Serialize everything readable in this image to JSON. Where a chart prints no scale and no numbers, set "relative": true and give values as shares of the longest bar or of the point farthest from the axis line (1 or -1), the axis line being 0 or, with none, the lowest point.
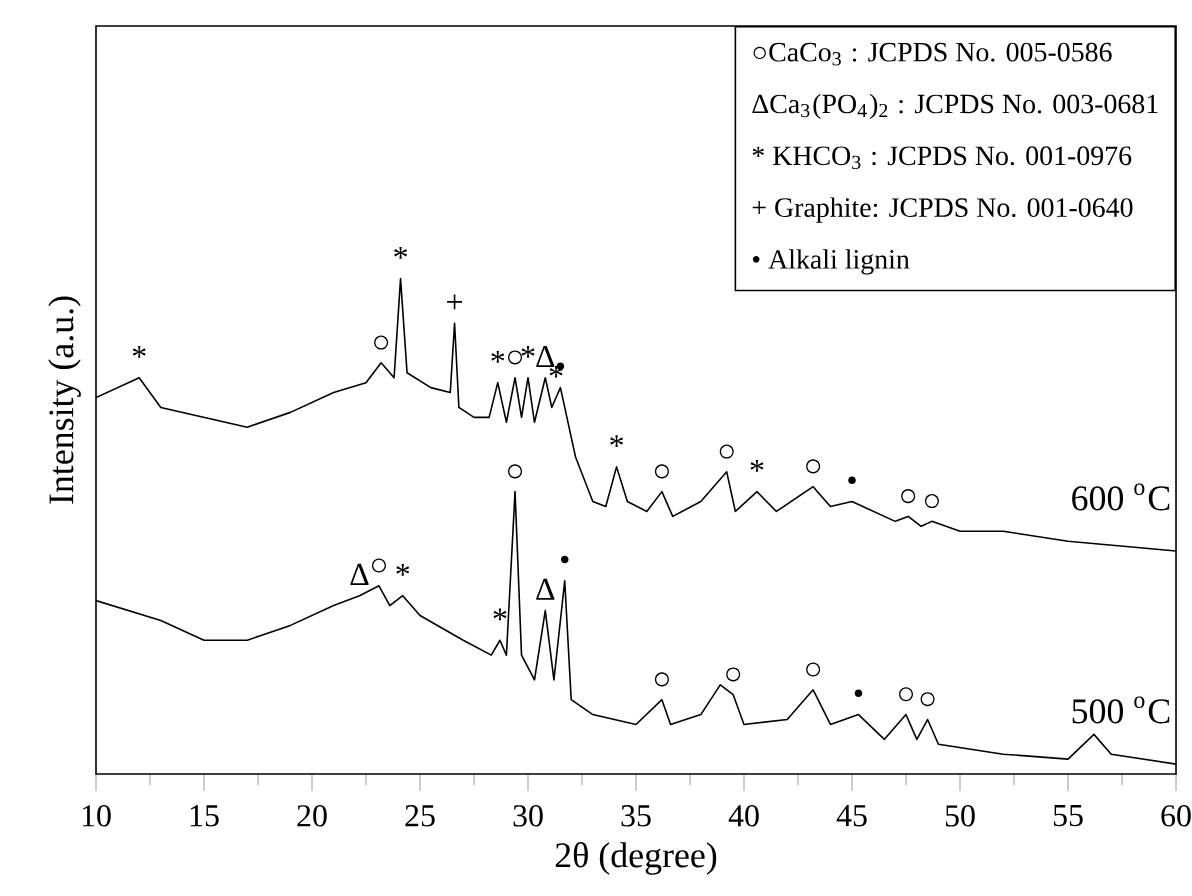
{
  "chart_data": {
    "type": "line",
    "relative": true,
    "xlabel": "2θ (degree)",
    "ylabel": "Intensity (a.u.)",
    "xlim": [
      10,
      60
    ],
    "xticks": [
      10,
      15,
      20,
      25,
      30,
      35,
      40,
      45,
      50,
      55,
      60
    ],
    "series": [
      {
        "name": "600 $^{o}$C",
        "color": "#000000",
        "x": [
          10,
          12,
          13,
          15,
          17,
          19,
          21,
          22.5,
          23.2,
          23.8,
          24.1,
          24.4,
          25.5,
          26.4,
          26.6,
          26.8,
          27.5,
          28.2,
          28.6,
          29.0,
          29.4,
          29.7,
          30.0,
          30.3,
          30.8,
          31.1,
          31.3,
          31.5,
          31.8,
          32.2,
          33,
          33.6,
          34.1,
          34.6,
          35.5,
          36.2,
          36.7,
          38,
          39.2,
          39.6,
          40.6,
          41.5,
          43.2,
          44,
          45,
          47,
          47.6,
          48.2,
          48.7,
          50,
          52,
          55,
          60
        ],
        "values": [
          0.76,
          0.8,
          0.74,
          0.72,
          0.7,
          0.73,
          0.77,
          0.79,
          0.83,
          0.8,
          1.0,
          0.81,
          0.78,
          0.77,
          0.91,
          0.74,
          0.72,
          0.72,
          0.79,
          0.71,
          0.8,
          0.72,
          0.8,
          0.71,
          0.8,
          0.74,
          0.76,
          0.78,
          0.72,
          0.64,
          0.55,
          0.54,
          0.62,
          0.55,
          0.53,
          0.57,
          0.52,
          0.55,
          0.61,
          0.53,
          0.57,
          0.53,
          0.58,
          0.54,
          0.55,
          0.51,
          0.52,
          0.5,
          0.51,
          0.49,
          0.49,
          0.47,
          0.45
        ]
      },
      {
        "name": "500 $^{o}$C",
        "color": "#000000",
        "x": [
          10,
          13,
          15,
          17,
          19,
          21,
          22.2,
          23.1,
          23.6,
          24.2,
          25,
          27,
          28.3,
          28.7,
          29.0,
          29.4,
          29.7,
          30.3,
          30.8,
          31.2,
          31.7,
          32,
          33,
          35,
          36.2,
          36.6,
          38,
          38.9,
          39.5,
          40,
          42,
          43.2,
          44,
          45.3,
          46.5,
          47.5,
          48,
          48.5,
          49,
          52,
          55,
          56.2,
          57,
          60
        ],
        "values": [
          0.35,
          0.31,
          0.27,
          0.27,
          0.3,
          0.34,
          0.36,
          0.38,
          0.34,
          0.36,
          0.32,
          0.27,
          0.24,
          0.27,
          0.24,
          0.57,
          0.24,
          0.19,
          0.33,
          0.19,
          0.39,
          0.15,
          0.12,
          0.1,
          0.15,
          0.1,
          0.12,
          0.18,
          0.16,
          0.1,
          0.11,
          0.17,
          0.1,
          0.12,
          0.07,
          0.12,
          0.07,
          0.11,
          0.06,
          0.04,
          0.03,
          0.08,
          0.04,
          0.02
        ]
      }
    ],
    "annotations": [
      "○CaCo$_{3}$ : JCPDS No. 005-0586",
      "ΔCa$_{3}$(PO$_{4}$)$_{2}$ : JCPDS No. 003-0681",
      "* KHCO$_{3}$ : JCPDS No. 001-0976",
      "+ Graphite: JCPDS No. 001-0640",
      "• Alkali lignin",
      {
        "text": "*",
        "x": 12,
        "y": 0.8
      },
      {
        "text": "○",
        "x": 23.2,
        "y": 0.83
      },
      {
        "text": "*",
        "x": 24.1,
        "y": 1.0
      },
      {
        "text": "+",
        "x": 26.6,
        "y": 0.91
      },
      {
        "text": "*",
        "x": 28.6,
        "y": 0.79
      },
      {
        "text": "○",
        "x": 29.4,
        "y": 0.8
      },
      {
        "text": "*",
        "x": 30.0,
        "y": 0.8
      },
      {
        "text": "Δ",
        "x": 30.8,
        "y": 0.8
      },
      {
        "text": "*",
        "x": 31.3,
        "y": 0.76
      },
      {
        "text": "•",
        "x": 31.5,
        "y": 0.78
      },
      {
        "text": "*",
        "x": 34.1,
        "y": 0.62
      },
      {
        "text": "○",
        "x": 36.2,
        "y": 0.57
      },
      {
        "text": "○",
        "x": 39.2,
        "y": 0.61
      },
      {
        "text": "*",
        "x": 40.6,
        "y": 0.57
      },
      {
        "text": "○",
        "x": 43.2,
        "y": 0.58
      },
      {
        "text": "•",
        "x": 45,
        "y": 0.55
      },
      {
        "text": "○",
        "x": 47.6,
        "y": 0.52
      },
      {
        "text": "○",
        "x": 48.7,
        "y": 0.51
      },
      {
        "text": "Δ",
        "x": 22.2,
        "y": 0.36
      },
      {
        "text": "○",
        "x": 23.1,
        "y": 0.38
      },
      {
        "text": "*",
        "x": 24.2,
        "y": 0.36
      },
      {
        "text": "*",
        "x": 28.7,
        "y": 0.27
      },
      {
        "text": "○",
        "x": 29.4,
        "y": 0.57
      },
      {
        "text": "Δ",
        "x": 30.8,
        "y": 0.33
      },
      {
        "text": "•",
        "x": 31.7,
        "y": 0.39
      },
      {
        "text": "○",
        "x": 36.2,
        "y": 0.15
      },
      {
        "text": "○",
        "x": 39.5,
        "y": 0.16
      },
      {
        "text": "○",
        "x": 43.2,
        "y": 0.17
      },
      {
        "text": "•",
        "x": 45.3,
        "y": 0.12
      },
      {
        "text": "○",
        "x": 47.5,
        "y": 0.12
      },
      {
        "text": "○",
        "x": 48.5,
        "y": 0.11
      }
    ]
  }
}
